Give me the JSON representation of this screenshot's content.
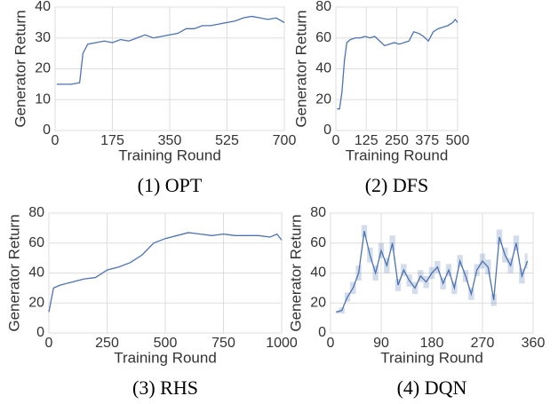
{
  "chart_data": [
    {
      "type": "line",
      "caption": "(1) OPT",
      "xlabel": "Training Round",
      "ylabel": "Generator Return",
      "xlim": [
        0,
        700
      ],
      "xticks": [
        0,
        175,
        350,
        525,
        700
      ],
      "ylim": [
        0,
        40
      ],
      "yticks": [
        0,
        10,
        20,
        30,
        40
      ],
      "grid": true,
      "series": [
        {
          "color": "#4c72b0",
          "x": [
            5,
            25,
            50,
            75,
            85,
            100,
            125,
            150,
            175,
            200,
            225,
            250,
            275,
            300,
            325,
            350,
            375,
            400,
            425,
            450,
            475,
            500,
            525,
            550,
            575,
            600,
            625,
            650,
            675,
            700
          ],
          "values": [
            15,
            15,
            15,
            15.5,
            25,
            28,
            28.5,
            29,
            28.5,
            29.5,
            29,
            30,
            31,
            30,
            30.5,
            31,
            31.5,
            33,
            33,
            34,
            34,
            34.5,
            35,
            35.5,
            36.5,
            37,
            36.5,
            36,
            36.5,
            35
          ]
        }
      ]
    },
    {
      "type": "line",
      "caption": "(2) DFS",
      "xlabel": "Training Round",
      "ylabel": "Generator Return",
      "xlim": [
        0,
        500
      ],
      "xticks": [
        0,
        125,
        250,
        375,
        500
      ],
      "ylim": [
        0,
        80
      ],
      "yticks": [
        0,
        20,
        40,
        60,
        80
      ],
      "grid": true,
      "series": [
        {
          "color": "#4c72b0",
          "x": [
            5,
            15,
            25,
            35,
            45,
            60,
            80,
            100,
            120,
            140,
            160,
            180,
            200,
            220,
            240,
            260,
            280,
            300,
            320,
            340,
            360,
            380,
            400,
            420,
            440,
            460,
            480,
            490,
            500
          ],
          "values": [
            14,
            14,
            25,
            45,
            57,
            59,
            60,
            60,
            61,
            60,
            61,
            58,
            55,
            56,
            57,
            56,
            57,
            58,
            64,
            63,
            61,
            58,
            64,
            66,
            67,
            68,
            70,
            72,
            70
          ]
        }
      ]
    },
    {
      "type": "line",
      "caption": "(3) RHS",
      "xlabel": "Training Round",
      "ylabel": "Generator Return",
      "xlim": [
        0,
        1000
      ],
      "xticks": [
        0,
        250,
        500,
        750,
        1000
      ],
      "ylim": [
        0,
        80
      ],
      "yticks": [
        0,
        20,
        40,
        60,
        80
      ],
      "grid": true,
      "series": [
        {
          "color": "#4c72b0",
          "x": [
            0,
            20,
            50,
            100,
            150,
            200,
            250,
            300,
            350,
            400,
            450,
            500,
            550,
            600,
            650,
            700,
            750,
            800,
            850,
            900,
            950,
            980,
            1000
          ],
          "values": [
            14,
            30,
            32,
            34,
            36,
            37,
            42,
            44,
            47,
            52,
            60,
            63,
            65,
            67,
            66,
            65,
            66,
            65,
            65,
            65,
            64,
            66,
            62
          ]
        }
      ]
    },
    {
      "type": "line",
      "caption": "(4) DQN",
      "xlabel": "Training Round",
      "ylabel": "Generator Return",
      "xlim": [
        0,
        360
      ],
      "xticks": [
        0,
        90,
        180,
        270,
        360
      ],
      "ylim": [
        0,
        80
      ],
      "yticks": [
        0,
        20,
        40,
        60,
        80
      ],
      "grid": true,
      "series": [
        {
          "color": "#4c72b0",
          "x": [
            10,
            20,
            30,
            40,
            50,
            60,
            70,
            80,
            90,
            100,
            110,
            120,
            130,
            140,
            150,
            160,
            170,
            180,
            190,
            200,
            210,
            220,
            230,
            240,
            250,
            260,
            270,
            280,
            290,
            300,
            310,
            320,
            330,
            340,
            350
          ],
          "values": [
            14,
            15,
            24,
            30,
            40,
            68,
            52,
            40,
            55,
            45,
            60,
            32,
            42,
            35,
            30,
            38,
            34,
            40,
            44,
            33,
            42,
            30,
            48,
            38,
            26,
            42,
            48,
            44,
            22,
            64,
            52,
            45,
            60,
            38,
            48
          ],
          "error": [
            1,
            2,
            3,
            4,
            5,
            4,
            5,
            5,
            5,
            5,
            5,
            4,
            4,
            4,
            4,
            4,
            4,
            4,
            4,
            4,
            4,
            4,
            4,
            4,
            4,
            4,
            5,
            5,
            4,
            5,
            5,
            5,
            5,
            5,
            5
          ]
        }
      ]
    }
  ]
}
